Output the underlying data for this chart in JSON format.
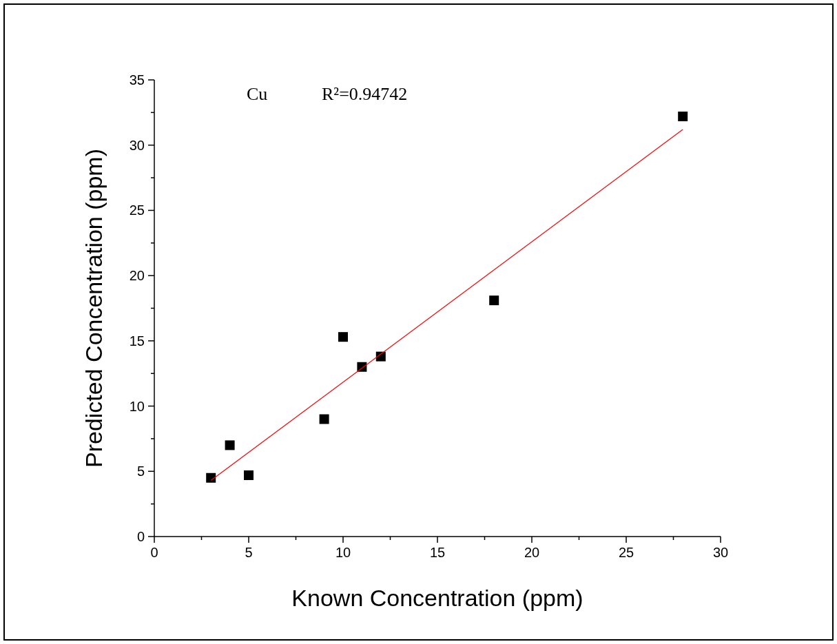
{
  "chart_data": {
    "type": "scatter",
    "xlabel": "Known Concentration (ppm)",
    "ylabel": "Predicted Concentration (ppm)",
    "annotations": [
      "Cu",
      "R²=0.94742"
    ],
    "series": [
      {
        "color": "#000000",
        "marker": "square",
        "x": [
          3,
          4,
          5,
          9,
          10,
          11,
          12,
          18,
          28
        ],
        "values": [
          4.5,
          7.0,
          4.7,
          9.0,
          15.3,
          13.0,
          13.8,
          18.1,
          32.2
        ]
      },
      {
        "type": "line",
        "color": "#ff0000",
        "x": [
          3,
          28
        ],
        "values": [
          4.3,
          31.2
        ]
      }
    ],
    "xlim": [
      0,
      30
    ],
    "ylim": [
      0,
      35
    ],
    "xticks": [
      0,
      {
        "value": 2.5,
        "label": null
      },
      5,
      {
        "value": 7.5,
        "label": null
      },
      10,
      {
        "value": 12.5,
        "label": null
      },
      15,
      {
        "value": 17.5,
        "label": null
      },
      20,
      {
        "value": 22.5,
        "label": null
      },
      25,
      {
        "value": 27.5,
        "label": null
      },
      30
    ],
    "yticks": [
      0,
      {
        "value": 2.5,
        "label": null
      },
      5,
      {
        "value": 7.5,
        "label": null
      },
      10,
      {
        "value": 12.5,
        "label": null
      },
      15,
      {
        "value": 17.5,
        "label": null
      },
      20,
      {
        "value": 22.5,
        "label": null
      },
      25,
      {
        "value": 27.5,
        "label": null
      },
      30,
      {
        "value": 32.5,
        "label": null
      },
      35
    ],
    "grid": false
  }
}
